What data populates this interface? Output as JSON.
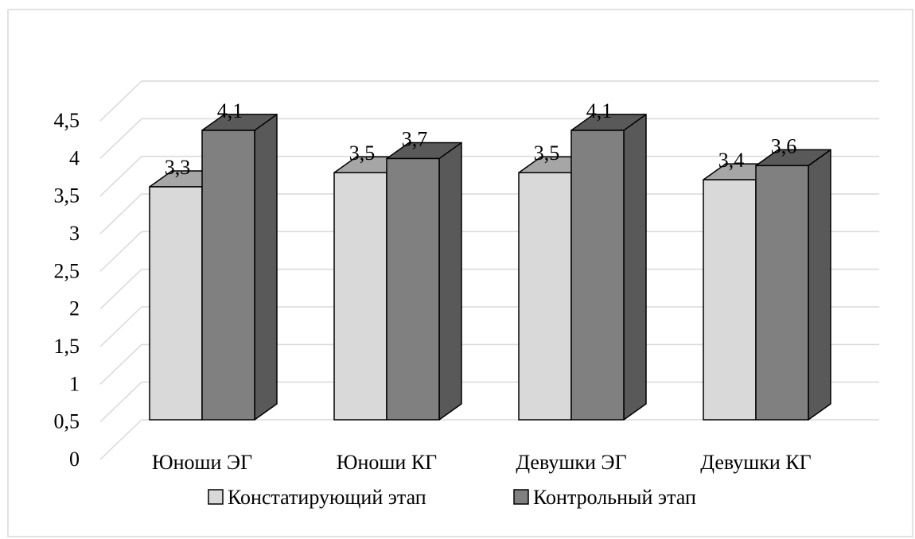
{
  "chart_data": {
    "type": "bar",
    "categories": [
      "Юноши ЭГ",
      "Юноши КГ",
      "Девушки ЭГ",
      "Девушки КГ"
    ],
    "series": [
      {
        "name": "Констатирующий этап",
        "values": [
          3.3,
          3.5,
          3.5,
          3.4
        ],
        "labels": [
          "3,3",
          "3,5",
          "3,5",
          "3,4"
        ],
        "color": "#d9d9d9"
      },
      {
        "name": "Контрольный этап",
        "values": [
          4.1,
          3.7,
          4.1,
          3.6
        ],
        "labels": [
          "4,1",
          "3,7",
          "4,1",
          "3,6"
        ],
        "color": "#808080"
      }
    ],
    "y_ticks": [
      "0",
      "0,5",
      "1",
      "1,5",
      "2",
      "2,5",
      "3",
      "3,5",
      "4",
      "4,5"
    ],
    "ylim": [
      0,
      4.5
    ],
    "title": "",
    "xlabel": "",
    "ylabel": "",
    "grid": true,
    "legend_position": "bottom",
    "style": "3d-clustered-column"
  }
}
